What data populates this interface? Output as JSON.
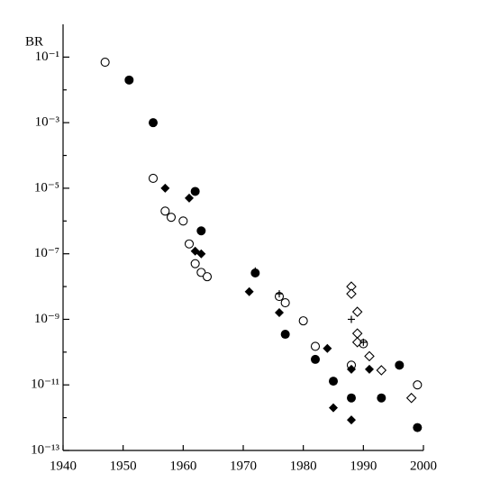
{
  "chart_data": {
    "type": "scatter",
    "y_label": "BR",
    "log_y": true,
    "color": "#000000",
    "xlim": [
      1940,
      2000
    ],
    "xticks": [
      1940,
      1950,
      1960,
      1970,
      1980,
      1990,
      2000
    ],
    "ylim": [
      1e-13,
      1
    ],
    "yticks": [
      {
        "value": 0.1,
        "label": "10⁻¹"
      },
      {
        "value": 0.001,
        "label": "10⁻³"
      },
      {
        "value": 1e-05,
        "label": "10⁻⁵"
      },
      {
        "value": 1e-07,
        "label": "10⁻⁷"
      },
      {
        "value": 1e-09,
        "label": "10⁻⁹"
      },
      {
        "value": 1e-11,
        "label": "10⁻¹¹"
      },
      {
        "value": 1e-13,
        "label": "10⁻¹³"
      }
    ],
    "minor_yticks": [
      0.01,
      0.0001,
      1e-06,
      1e-08,
      1e-10,
      1e-12
    ],
    "series": [
      {
        "marker": "open-circle",
        "x": [
          1947,
          1955,
          1957,
          1958,
          1960,
          1961,
          1962,
          1963,
          1964,
          1976,
          1977,
          1980,
          1982,
          1988,
          1990,
          1999
        ],
        "values": [
          0.07,
          2e-05,
          2e-06,
          1.3e-06,
          1e-06,
          2e-07,
          5e-08,
          2.7e-08,
          2e-08,
          5e-09,
          3.2e-09,
          9e-10,
          1.5e-10,
          4e-11,
          1.8e-10,
          1e-11
        ]
      },
      {
        "marker": "filled-circle",
        "x": [
          1951,
          1955,
          1962,
          1963,
          1972,
          1977,
          1982,
          1985,
          1988,
          1993,
          1996,
          1999
        ],
        "values": [
          0.02,
          0.001,
          8e-06,
          5e-07,
          2.6e-08,
          3.5e-10,
          6e-11,
          1.3e-11,
          4e-12,
          4e-12,
          4e-11,
          5e-13
        ]
      },
      {
        "marker": "filled-diamond",
        "x": [
          1957,
          1961,
          1962,
          1963,
          1971,
          1976,
          1984,
          1985,
          1988,
          1988,
          1991
        ],
        "values": [
          1e-05,
          5e-06,
          1.2e-07,
          1e-07,
          7e-09,
          1.6e-09,
          1.3e-10,
          2e-12,
          3e-11,
          8.5e-13,
          3e-11
        ]
      },
      {
        "marker": "open-diamond",
        "x": [
          1988,
          1988,
          1989,
          1989,
          1989,
          1991,
          1993,
          1998
        ],
        "values": [
          1e-08,
          6e-09,
          1.7e-09,
          3.7e-10,
          2e-10,
          7.5e-11,
          2.8e-11,
          4e-12
        ]
      },
      {
        "marker": "plus",
        "x": [
          1972,
          1976,
          1988,
          1990
        ],
        "values": [
          3e-08,
          6e-09,
          1e-09,
          2e-10
        ]
      }
    ]
  }
}
